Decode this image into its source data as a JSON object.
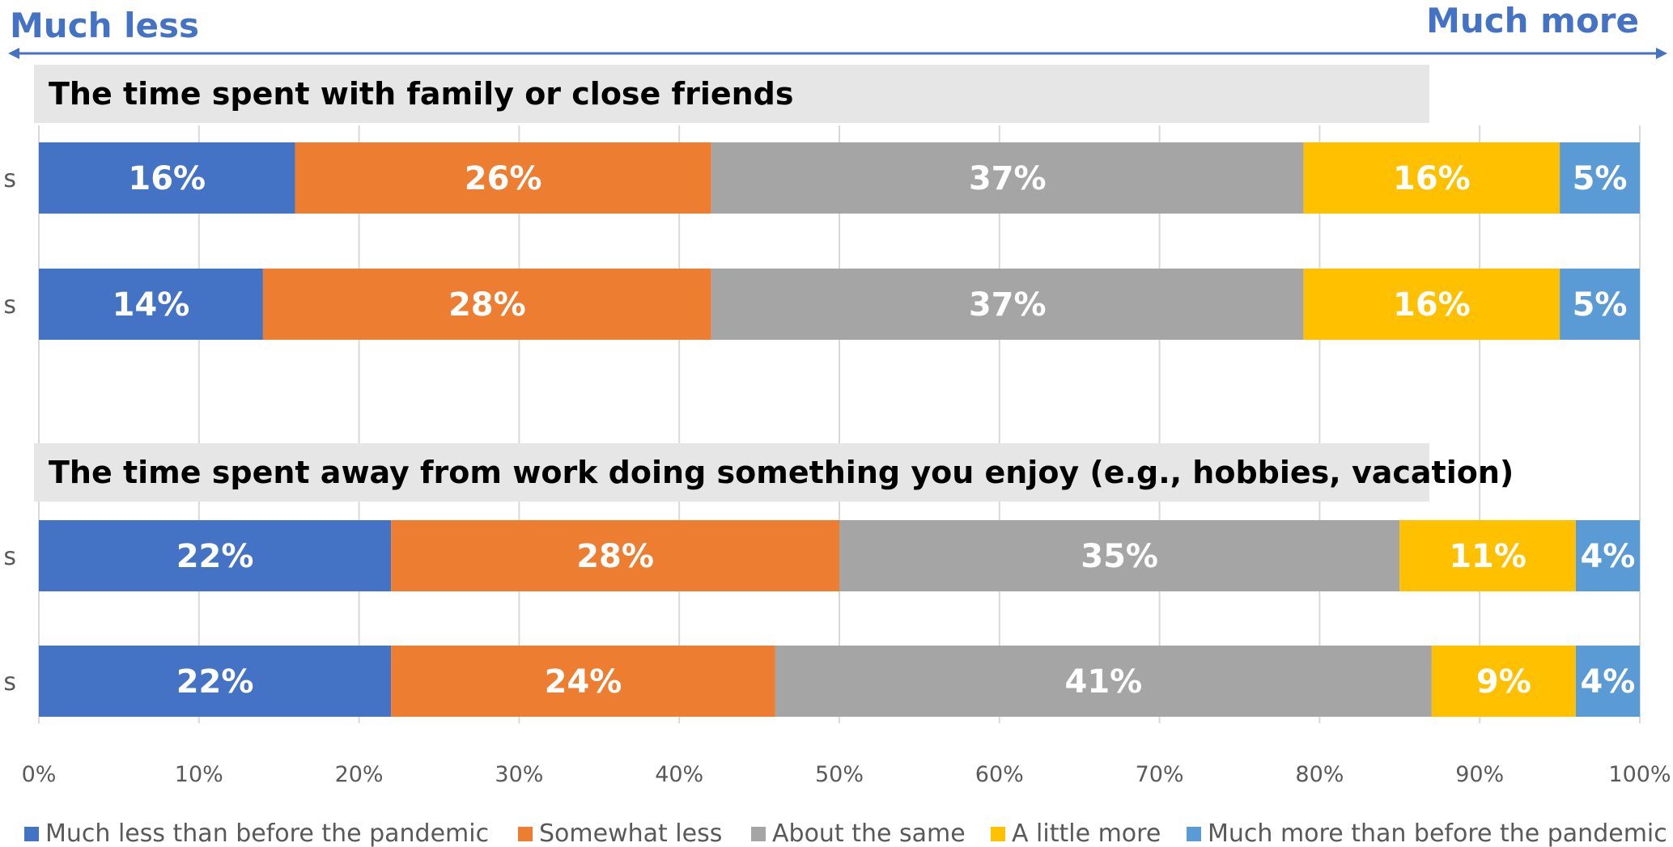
{
  "header": {
    "left_label": "Much less",
    "right_label": "Much more"
  },
  "chart_data": {
    "type": "bar",
    "orientation": "horizontal",
    "stacked": true,
    "percent": true,
    "xlim": [
      0,
      100
    ],
    "ticks": [
      "0%",
      "10%",
      "20%",
      "30%",
      "40%",
      "50%",
      "60%",
      "70%",
      "80%",
      "90%",
      "100%"
    ],
    "grid": true,
    "legend_position": "bottom",
    "series": [
      {
        "name": "Much less than before the pandemic",
        "color": "#4472C4"
      },
      {
        "name": "Somewhat less",
        "color": "#ED7D31"
      },
      {
        "name": "About the same",
        "color": "#A5A5A5"
      },
      {
        "name": "A little more",
        "color": "#FFC000"
      },
      {
        "name": "Much more than before the pandemic",
        "color": "#5B9BD5"
      }
    ],
    "sections": [
      {
        "title": "The time spent with family or close friends",
        "bars": [
          {
            "category": "s",
            "values": [
              16,
              26,
              37,
              16,
              5
            ],
            "labels": [
              "16%",
              "26%",
              "37%",
              "16%",
              "5%"
            ]
          },
          {
            "category": "s",
            "values": [
              14,
              28,
              37,
              16,
              5
            ],
            "labels": [
              "14%",
              "28%",
              "37%",
              "16%",
              "5%"
            ]
          }
        ]
      },
      {
        "title": "The time spent away from work doing something you enjoy (e.g., hobbies, vacation)",
        "bars": [
          {
            "category": "s",
            "values": [
              22,
              28,
              35,
              11,
              4
            ],
            "labels": [
              "22%",
              "28%",
              "35%",
              "11%",
              "4%"
            ]
          },
          {
            "category": "s",
            "values": [
              22,
              24,
              41,
              9,
              4
            ],
            "labels": [
              "22%",
              "24%",
              "41%",
              "9%",
              "4%"
            ]
          }
        ]
      }
    ]
  }
}
